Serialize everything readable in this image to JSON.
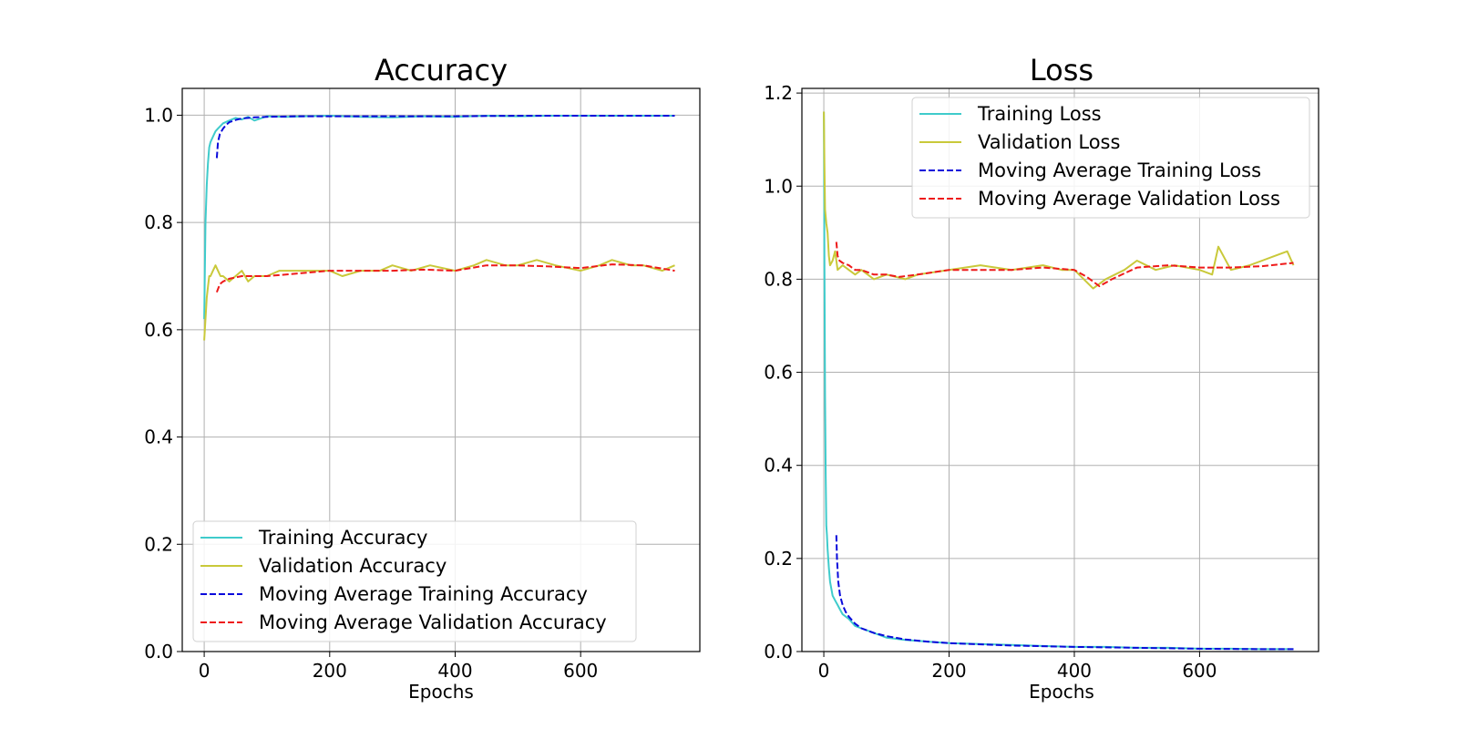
{
  "chart_data": [
    {
      "type": "line",
      "title": "Accuracy",
      "xlabel": "Epochs",
      "ylabel": "",
      "xlim": [
        -35,
        790
      ],
      "ylim": [
        0.0,
        1.05
      ],
      "xticks": [
        0,
        200,
        400,
        600
      ],
      "yticks": [
        0.0,
        0.2,
        0.4,
        0.6,
        0.8,
        1.0
      ],
      "xtick_labels": [
        "0",
        "200",
        "400",
        "600"
      ],
      "ytick_labels": [
        "0.0",
        "0.2",
        "0.4",
        "0.6",
        "0.8",
        "1.0"
      ],
      "grid": true,
      "legend_position": "lower-left",
      "series": [
        {
          "name": "Training Accuracy",
          "color": "#3fcbcb",
          "dash": "solid",
          "x": [
            0,
            2,
            4,
            6,
            8,
            10,
            14,
            18,
            22,
            26,
            30,
            40,
            50,
            60,
            70,
            80,
            100,
            130,
            160,
            200,
            250,
            300,
            350,
            400,
            450,
            500,
            550,
            600,
            650,
            700,
            750
          ],
          "y": [
            0.62,
            0.8,
            0.87,
            0.91,
            0.94,
            0.95,
            0.96,
            0.97,
            0.975,
            0.98,
            0.985,
            0.99,
            0.995,
            0.992,
            0.997,
            0.99,
            0.998,
            0.997,
            0.998,
            0.999,
            0.997,
            0.996,
            0.998,
            0.997,
            0.999,
            0.998,
            0.999,
            0.999,
            0.999,
            0.999,
            0.999
          ]
        },
        {
          "name": "Validation Accuracy",
          "color": "#c9c93a",
          "dash": "solid",
          "x": [
            0,
            2,
            4,
            6,
            8,
            10,
            14,
            18,
            22,
            26,
            30,
            40,
            50,
            60,
            70,
            80,
            100,
            120,
            150,
            180,
            200,
            220,
            250,
            280,
            300,
            330,
            360,
            400,
            430,
            450,
            480,
            500,
            530,
            560,
            600,
            630,
            650,
            680,
            700,
            730,
            750
          ],
          "y": [
            0.58,
            0.62,
            0.66,
            0.68,
            0.7,
            0.7,
            0.71,
            0.72,
            0.71,
            0.7,
            0.7,
            0.69,
            0.7,
            0.71,
            0.69,
            0.7,
            0.7,
            0.71,
            0.71,
            0.71,
            0.71,
            0.7,
            0.71,
            0.71,
            0.72,
            0.71,
            0.72,
            0.71,
            0.72,
            0.73,
            0.72,
            0.72,
            0.73,
            0.72,
            0.71,
            0.72,
            0.73,
            0.72,
            0.72,
            0.71,
            0.72
          ]
        },
        {
          "name": "Moving Average Training Accuracy",
          "color": "#0a0adb",
          "dash": "dashed",
          "x": [
            20,
            22,
            25,
            30,
            35,
            40,
            50,
            60,
            80,
            100,
            150,
            200,
            300,
            400,
            500,
            600,
            700,
            750
          ],
          "y": [
            0.92,
            0.95,
            0.965,
            0.975,
            0.982,
            0.987,
            0.991,
            0.994,
            0.996,
            0.997,
            0.998,
            0.998,
            0.998,
            0.998,
            0.999,
            0.999,
            0.999,
            0.999
          ]
        },
        {
          "name": "Moving Average Validation Accuracy",
          "color": "#ee1a1a",
          "dash": "dashed",
          "x": [
            20,
            25,
            30,
            40,
            60,
            80,
            100,
            150,
            200,
            250,
            300,
            350,
            400,
            450,
            500,
            550,
            600,
            650,
            700,
            750
          ],
          "y": [
            0.67,
            0.685,
            0.69,
            0.695,
            0.7,
            0.7,
            0.7,
            0.705,
            0.71,
            0.71,
            0.71,
            0.712,
            0.71,
            0.72,
            0.72,
            0.718,
            0.715,
            0.722,
            0.72,
            0.71
          ]
        }
      ]
    },
    {
      "type": "line",
      "title": "Loss",
      "xlabel": "Epochs",
      "ylabel": "",
      "xlim": [
        -35,
        790
      ],
      "ylim": [
        0.0,
        1.21
      ],
      "xticks": [
        0,
        200,
        400,
        600
      ],
      "yticks": [
        0.0,
        0.2,
        0.4,
        0.6,
        0.8,
        1.0,
        1.2
      ],
      "xtick_labels": [
        "0",
        "200",
        "400",
        "600"
      ],
      "ytick_labels": [
        "0.0",
        "0.2",
        "0.4",
        "0.6",
        "0.8",
        "1.0",
        "1.2"
      ],
      "grid": true,
      "legend_position": "upper-right",
      "series": [
        {
          "name": "Training Loss",
          "color": "#3fcbcb",
          "dash": "solid",
          "x": [
            0,
            1,
            2,
            3,
            4,
            5,
            6,
            8,
            10,
            14,
            18,
            22,
            26,
            30,
            40,
            50,
            60,
            80,
            100,
            130,
            160,
            200,
            250,
            300,
            350,
            400,
            450,
            500,
            550,
            600,
            650,
            700,
            750
          ],
          "y": [
            1.16,
            0.85,
            0.55,
            0.38,
            0.27,
            0.25,
            0.22,
            0.18,
            0.15,
            0.12,
            0.11,
            0.1,
            0.09,
            0.08,
            0.07,
            0.055,
            0.05,
            0.04,
            0.03,
            0.025,
            0.022,
            0.018,
            0.016,
            0.014,
            0.012,
            0.01,
            0.01,
            0.008,
            0.008,
            0.006,
            0.006,
            0.005,
            0.005
          ]
        },
        {
          "name": "Validation Loss",
          "color": "#c9c93a",
          "dash": "solid",
          "x": [
            0,
            1,
            2,
            4,
            6,
            8,
            10,
            14,
            18,
            22,
            30,
            40,
            50,
            60,
            70,
            80,
            100,
            130,
            150,
            200,
            250,
            300,
            350,
            380,
            400,
            430,
            450,
            480,
            500,
            530,
            560,
            600,
            620,
            630,
            650,
            680,
            700,
            740,
            750
          ],
          "y": [
            1.16,
            1.05,
            0.95,
            0.92,
            0.9,
            0.85,
            0.83,
            0.84,
            0.86,
            0.82,
            0.83,
            0.82,
            0.81,
            0.82,
            0.81,
            0.8,
            0.81,
            0.8,
            0.81,
            0.82,
            0.83,
            0.82,
            0.83,
            0.82,
            0.82,
            0.78,
            0.8,
            0.82,
            0.84,
            0.82,
            0.83,
            0.82,
            0.81,
            0.87,
            0.82,
            0.83,
            0.84,
            0.86,
            0.83
          ]
        },
        {
          "name": "Moving Average Training Loss",
          "color": "#0a0adb",
          "dash": "dashed",
          "x": [
            20,
            21,
            23,
            26,
            30,
            35,
            40,
            50,
            60,
            80,
            100,
            130,
            160,
            200,
            300,
            400,
            500,
            600,
            700,
            750
          ],
          "y": [
            0.25,
            0.2,
            0.15,
            0.12,
            0.1,
            0.085,
            0.075,
            0.06,
            0.05,
            0.04,
            0.033,
            0.026,
            0.022,
            0.018,
            0.013,
            0.01,
            0.008,
            0.006,
            0.005,
            0.005
          ]
        },
        {
          "name": "Moving Average Validation Loss",
          "color": "#ee1a1a",
          "dash": "dashed",
          "x": [
            20,
            22,
            25,
            30,
            40,
            50,
            60,
            80,
            100,
            120,
            150,
            200,
            250,
            300,
            350,
            400,
            420,
            440,
            460,
            500,
            550,
            600,
            650,
            700,
            750
          ],
          "y": [
            0.88,
            0.85,
            0.84,
            0.835,
            0.83,
            0.82,
            0.82,
            0.81,
            0.81,
            0.805,
            0.81,
            0.82,
            0.82,
            0.82,
            0.825,
            0.82,
            0.805,
            0.785,
            0.8,
            0.825,
            0.83,
            0.825,
            0.825,
            0.828,
            0.835
          ]
        }
      ]
    }
  ]
}
